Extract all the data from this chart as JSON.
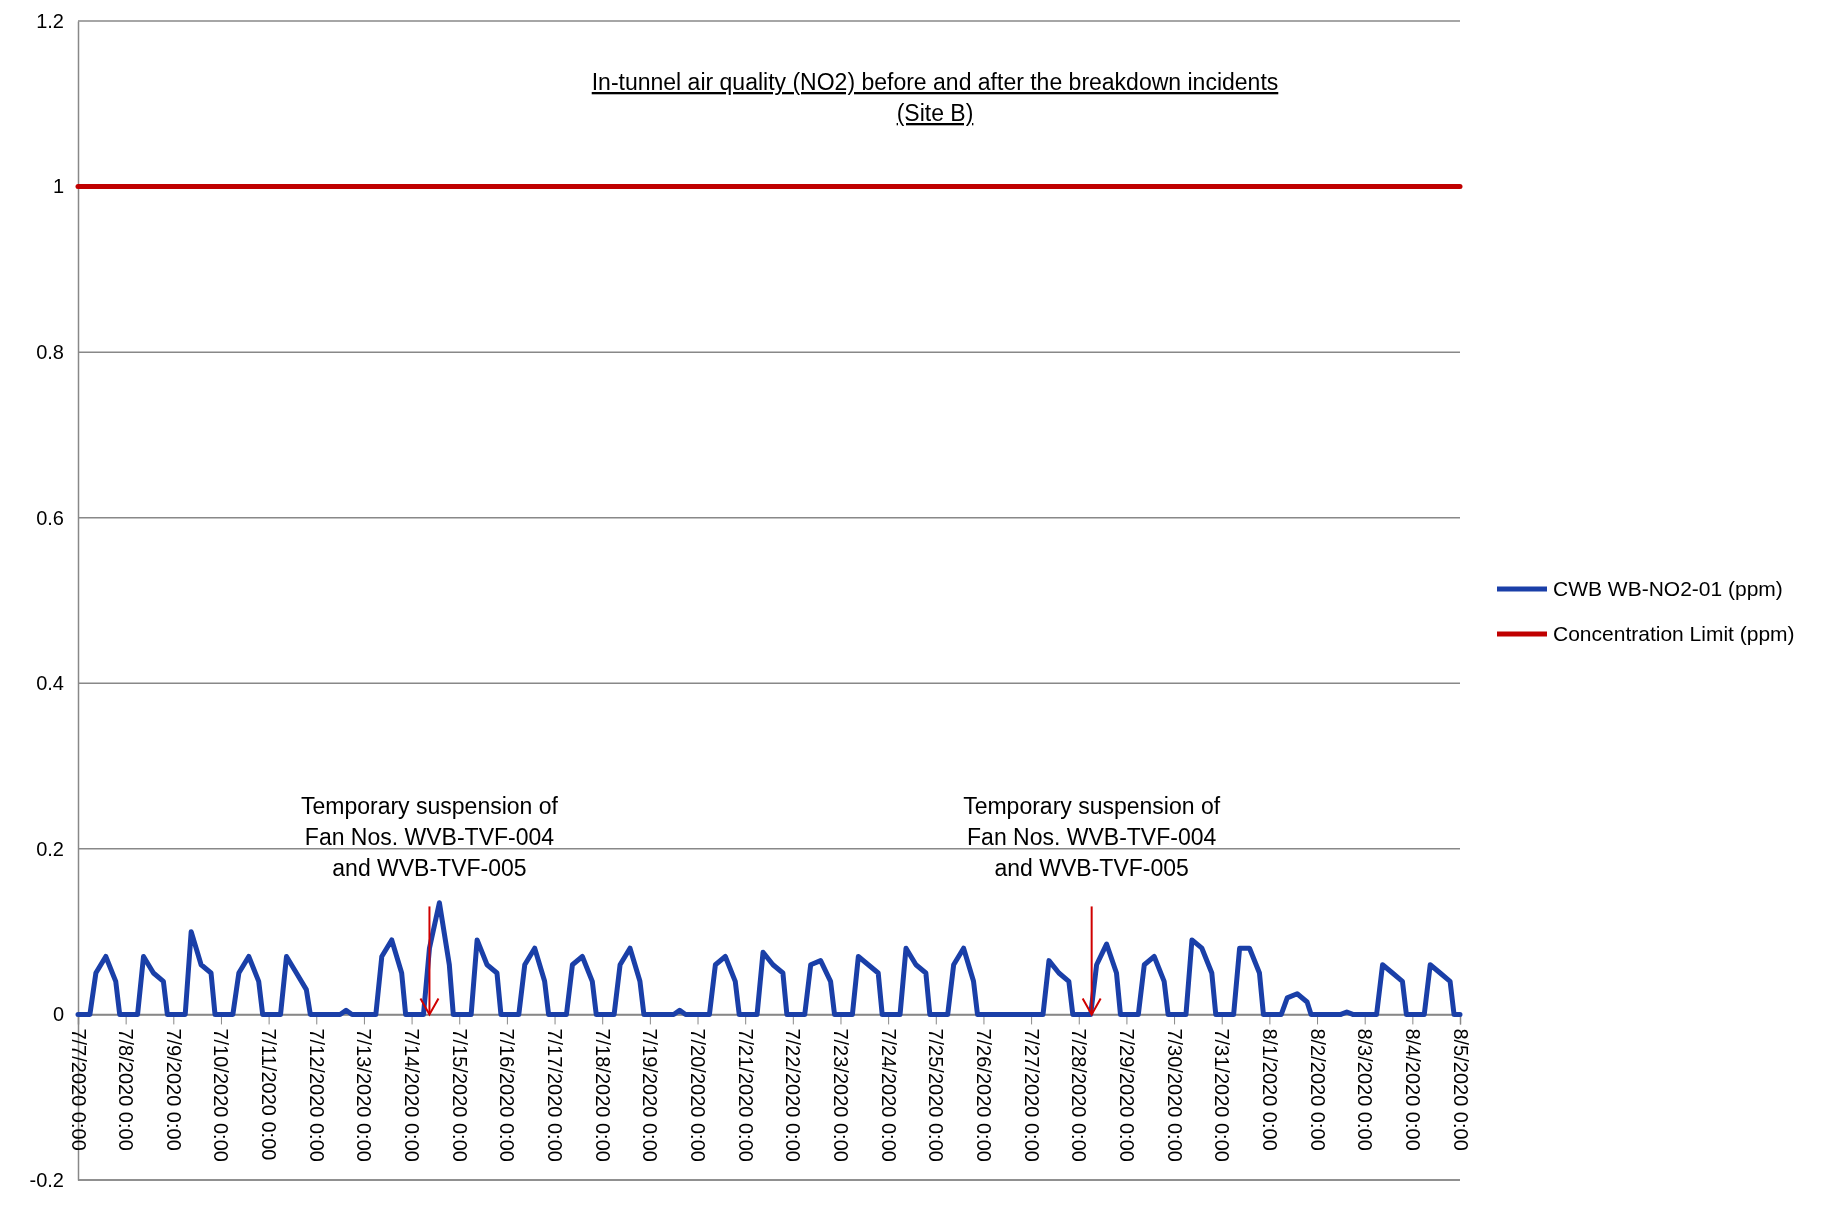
{
  "chart_data": {
    "type": "line",
    "title": "In-tunnel air quality (NO2) before and after the breakdown incidents\n(Site B)",
    "ylim": [
      -0.2,
      1.2
    ],
    "yticks": [
      -0.2,
      0,
      0.2,
      0.4,
      0.6,
      0.8,
      1,
      1.2
    ],
    "xlim": [
      "2020-07-07T00:00",
      "2020-08-05T00:00"
    ],
    "xticks": [
      {
        "value": "2020-07-07",
        "label": "7/7/2020 0:00"
      },
      {
        "value": "2020-07-08",
        "label": "7/8/2020 0:00"
      },
      {
        "value": "2020-07-09",
        "label": "7/9/2020 0:00"
      },
      {
        "value": "2020-07-10",
        "label": "7/10/2020 0:00"
      },
      {
        "value": "2020-07-11",
        "label": "7/11/2020 0:00"
      },
      {
        "value": "2020-07-12",
        "label": "7/12/2020 0:00"
      },
      {
        "value": "2020-07-13",
        "label": "7/13/2020 0:00"
      },
      {
        "value": "2020-07-14",
        "label": "7/14/2020 0:00"
      },
      {
        "value": "2020-07-15",
        "label": "7/15/2020 0:00"
      },
      {
        "value": "2020-07-16",
        "label": "7/16/2020 0:00"
      },
      {
        "value": "2020-07-17",
        "label": "7/17/2020 0:00"
      },
      {
        "value": "2020-07-18",
        "label": "7/18/2020 0:00"
      },
      {
        "value": "2020-07-19",
        "label": "7/19/2020 0:00"
      },
      {
        "value": "2020-07-20",
        "label": "7/20/2020 0:00"
      },
      {
        "value": "2020-07-21",
        "label": "7/21/2020 0:00"
      },
      {
        "value": "2020-07-22",
        "label": "7/22/2020 0:00"
      },
      {
        "value": "2020-07-23",
        "label": "7/23/2020 0:00"
      },
      {
        "value": "2020-07-24",
        "label": "7/24/2020 0:00"
      },
      {
        "value": "2020-07-25",
        "label": "7/25/2020 0:00"
      },
      {
        "value": "2020-07-26",
        "label": "7/26/2020 0:00"
      },
      {
        "value": "2020-07-27",
        "label": "7/27/2020 0:00"
      },
      {
        "value": "2020-07-28",
        "label": "7/28/2020 0:00"
      },
      {
        "value": "2020-07-29",
        "label": "7/29/2020 0:00"
      },
      {
        "value": "2020-07-30",
        "label": "7/30/2020 0:00"
      },
      {
        "value": "2020-07-31",
        "label": "7/31/2020 0:00"
      },
      {
        "value": "2020-08-01",
        "label": "8/1/2020 0:00"
      },
      {
        "value": "2020-08-02",
        "label": "8/2/2020 0:00"
      },
      {
        "value": "2020-08-03",
        "label": "8/3/2020 0:00"
      },
      {
        "value": "2020-08-04",
        "label": "8/4/2020 0:00"
      },
      {
        "value": "2020-08-05",
        "label": "8/5/2020 0:00"
      }
    ],
    "grid": "y",
    "legend": "right",
    "marker": "none",
    "line_style": "solid",
    "series": [
      {
        "name": "CWB WB-NO2-01 (ppm)",
        "color": "#1a3fa8",
        "x": [
          "2020-07-07T00:00",
          "2020-07-07T06:00",
          "2020-07-07T09:00",
          "2020-07-07T14:00",
          "2020-07-07T19:00",
          "2020-07-07T21:00",
          "2020-07-08T06:00",
          "2020-07-08T09:00",
          "2020-07-08T14:00",
          "2020-07-08T19:00",
          "2020-07-08T21:00",
          "2020-07-09T06:00",
          "2020-07-09T09:00",
          "2020-07-09T14:00",
          "2020-07-09T19:00",
          "2020-07-09T21:00",
          "2020-07-10T06:00",
          "2020-07-10T09:00",
          "2020-07-10T14:00",
          "2020-07-10T19:00",
          "2020-07-10T21:00",
          "2020-07-11T06:00",
          "2020-07-11T09:00",
          "2020-07-11T14:00",
          "2020-07-11T19:00",
          "2020-07-11T21:00",
          "2020-07-12T12:00",
          "2020-07-12T15:00",
          "2020-07-12T18:00",
          "2020-07-13T06:00",
          "2020-07-13T09:00",
          "2020-07-13T14:00",
          "2020-07-13T19:00",
          "2020-07-13T21:00",
          "2020-07-14T06:00",
          "2020-07-14T09:00",
          "2020-07-14T14:00",
          "2020-07-14T19:00",
          "2020-07-14T21:00",
          "2020-07-15T06:00",
          "2020-07-15T09:00",
          "2020-07-15T14:00",
          "2020-07-15T19:00",
          "2020-07-15T21:00",
          "2020-07-16T06:00",
          "2020-07-16T09:00",
          "2020-07-16T14:00",
          "2020-07-16T19:00",
          "2020-07-16T21:00",
          "2020-07-17T06:00",
          "2020-07-17T09:00",
          "2020-07-17T14:00",
          "2020-07-17T19:00",
          "2020-07-17T21:00",
          "2020-07-18T06:00",
          "2020-07-18T09:00",
          "2020-07-18T14:00",
          "2020-07-18T19:00",
          "2020-07-18T21:00",
          "2020-07-19T12:00",
          "2020-07-19T15:00",
          "2020-07-19T18:00",
          "2020-07-20T06:00",
          "2020-07-20T09:00",
          "2020-07-20T14:00",
          "2020-07-20T19:00",
          "2020-07-20T21:00",
          "2020-07-21T06:00",
          "2020-07-21T09:00",
          "2020-07-21T14:00",
          "2020-07-21T19:00",
          "2020-07-21T21:00",
          "2020-07-22T06:00",
          "2020-07-22T09:00",
          "2020-07-22T14:00",
          "2020-07-22T19:00",
          "2020-07-22T21:00",
          "2020-07-23T06:00",
          "2020-07-23T09:00",
          "2020-07-23T14:00",
          "2020-07-23T19:00",
          "2020-07-23T21:00",
          "2020-07-24T06:00",
          "2020-07-24T09:00",
          "2020-07-24T14:00",
          "2020-07-24T19:00",
          "2020-07-24T21:00",
          "2020-07-25T06:00",
          "2020-07-25T09:00",
          "2020-07-25T14:00",
          "2020-07-25T19:00",
          "2020-07-25T21:00",
          "2020-07-27T06:00",
          "2020-07-27T09:00",
          "2020-07-27T14:00",
          "2020-07-27T19:00",
          "2020-07-27T21:00",
          "2020-07-28T06:00",
          "2020-07-28T09:00",
          "2020-07-28T14:00",
          "2020-07-28T19:00",
          "2020-07-28T21:00",
          "2020-07-29T06:00",
          "2020-07-29T09:00",
          "2020-07-29T14:00",
          "2020-07-29T19:00",
          "2020-07-29T21:00",
          "2020-07-30T06:00",
          "2020-07-30T09:00",
          "2020-07-30T14:00",
          "2020-07-30T19:00",
          "2020-07-30T21:00",
          "2020-07-31T06:00",
          "2020-07-31T09:00",
          "2020-07-31T14:00",
          "2020-07-31T19:00",
          "2020-07-31T21:00",
          "2020-08-01T06:00",
          "2020-08-01T09:00",
          "2020-08-01T14:00",
          "2020-08-01T19:00",
          "2020-08-01T21:00",
          "2020-08-02T12:00",
          "2020-08-02T15:00",
          "2020-08-02T18:00",
          "2020-08-03T06:00",
          "2020-08-03T09:00",
          "2020-08-03T14:00",
          "2020-08-03T19:00",
          "2020-08-03T21:00",
          "2020-08-04T06:00",
          "2020-08-04T09:00",
          "2020-08-04T14:00",
          "2020-08-04T19:00",
          "2020-08-04T21:00",
          "2020-08-05T00:00"
        ],
        "values": [
          0,
          0,
          0.05,
          0.07,
          0.04,
          0,
          0,
          0.07,
          0.05,
          0.04,
          0,
          0,
          0.1,
          0.06,
          0.05,
          0,
          0,
          0.05,
          0.07,
          0.04,
          0,
          0,
          0.07,
          0.05,
          0.03,
          0,
          0,
          0.005,
          0,
          0,
          0.07,
          0.09,
          0.05,
          0,
          0,
          0.08,
          0.135,
          0.06,
          0,
          0,
          0.09,
          0.06,
          0.05,
          0,
          0,
          0.06,
          0.08,
          0.04,
          0,
          0,
          0.06,
          0.07,
          0.04,
          0,
          0,
          0.06,
          0.08,
          0.04,
          0,
          0,
          0.005,
          0,
          0,
          0.06,
          0.07,
          0.04,
          0,
          0,
          0.075,
          0.06,
          0.05,
          0,
          0,
          0.06,
          0.065,
          0.04,
          0,
          0,
          0.07,
          0.06,
          0.05,
          0,
          0,
          0.08,
          0.06,
          0.05,
          0,
          0,
          0.06,
          0.08,
          0.04,
          0,
          0,
          0.065,
          0.05,
          0.04,
          0,
          0,
          0.06,
          0.085,
          0.05,
          0,
          0,
          0.06,
          0.07,
          0.04,
          0,
          0,
          0.09,
          0.08,
          0.05,
          0,
          0,
          0.08,
          0.08,
          0.05,
          0,
          0,
          0.02,
          0.025,
          0.015,
          0,
          0,
          0.003,
          0,
          0,
          0.06,
          0.05,
          0.04,
          0,
          0,
          0.06,
          0.05,
          0.04,
          0,
          0
        ]
      },
      {
        "name": "Concentration Limit (ppm)",
        "color": "#c00000",
        "x": [
          "2020-07-07T00:00",
          "2020-08-05T00:00"
        ],
        "values": [
          1,
          1
        ]
      }
    ],
    "annotations": [
      {
        "text": "Temporary suspension of\nFan Nos. WVB-TVF-004\nand WVB-TVF-005",
        "x": "2020-07-14T09:00",
        "y": 0
      },
      {
        "text": "Temporary suspension of\nFan Nos. WVB-TVF-004\nand WVB-TVF-005",
        "x": "2020-07-28T06:30",
        "y": 0
      }
    ]
  }
}
